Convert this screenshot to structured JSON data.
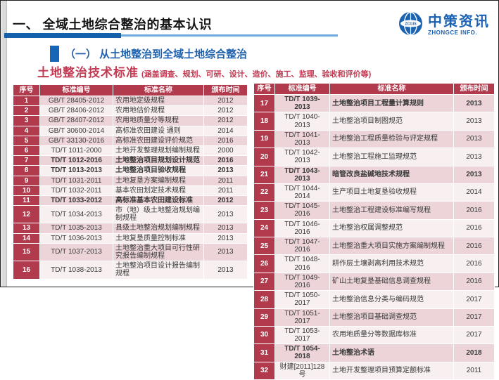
{
  "header": {
    "title": "一、 全域土地综合整治的基本认识",
    "logo": {
      "globe_icon": "globe-zcgis",
      "globe_text": "ZCGIS",
      "zh": "中策资讯",
      "en": "ZHONGCE INFO."
    }
  },
  "subtitle": "（一） 从土地整治到全域土地综合整治",
  "standards_heading": {
    "main": "土地整治技术标准",
    "note": "(涵盖调查、规划、可研、设计、造价、施工、监理、验收和评价等)"
  },
  "colors": {
    "table_header_red": "#b13b4d",
    "row_pink": "#ecd4d8",
    "row_light": "#f8eff0",
    "rule_blue_dark": "#1460ab",
    "rule_blue_light": "#6ea9dc",
    "heading_red": "#c23a52",
    "brand_blue": "#1b62b0"
  },
  "table": {
    "columns": [
      "序号",
      "标准编号",
      "标准名称",
      "颁布时间"
    ],
    "left_rows": [
      {
        "no": 1,
        "code": "GB/T 28405-2012",
        "name": "农用地定级规程",
        "year": "2012",
        "bold": false
      },
      {
        "no": 2,
        "code": "GB/T 28406-2012",
        "name": "农用地估价规程",
        "year": "2012",
        "bold": false
      },
      {
        "no": 3,
        "code": "GB/T 28407-2012",
        "name": "农用地质量分等规程",
        "year": "2012",
        "bold": false
      },
      {
        "no": 4,
        "code": "GB/T 30600-2014",
        "name": "高标准农田建设 通则",
        "year": "2014",
        "bold": false
      },
      {
        "no": 5,
        "code": "GB/T 33130-2016",
        "name": "高标准农田建设评价规范",
        "year": "2016",
        "bold": false
      },
      {
        "no": 6,
        "code": "TD/T 1011-2000",
        "name": "土地开发整理规划编制规程",
        "year": "2000",
        "bold": false
      },
      {
        "no": 7,
        "code": "TD/T 1012-2016",
        "name": "土地整治项目规划设计规范",
        "year": "2016",
        "bold": true
      },
      {
        "no": 8,
        "code": "TD/T 1013-2013",
        "name": "土地整治项目验收规程",
        "year": "2013",
        "bold": true
      },
      {
        "no": 9,
        "code": "TD/T 1031-2011",
        "name": "土地复垦方案编制规程",
        "year": "2011",
        "bold": false
      },
      {
        "no": 10,
        "code": "TD/T 1032-2011",
        "name": "基本农田划定技术规程",
        "year": "2011",
        "bold": false
      },
      {
        "no": 11,
        "code": "TD/T 1033-2012",
        "name": "高标准基本农田建设标准",
        "year": "2012",
        "bold": true
      },
      {
        "no": 12,
        "code": "TD/T 1034-2013",
        "name": "市（地）级土地整治规划编制规程",
        "year": "2013",
        "bold": false
      },
      {
        "no": 13,
        "code": "TD/T 1035-2013",
        "name": "县级土地整治规划编制规程",
        "year": "2013",
        "bold": false
      },
      {
        "no": 14,
        "code": "TD/T 1036-2013",
        "name": "土地复垦质量控制标准",
        "year": "2013",
        "bold": false
      },
      {
        "no": 15,
        "code": "TD/T 1037-2013",
        "name": "土地整治重大项目可行性研究报告编制规程",
        "year": "2013",
        "bold": false
      },
      {
        "no": 16,
        "code": "TD/T 1038-2013",
        "name": "土地整治项目设计报告编制规程",
        "year": "2013",
        "bold": false
      }
    ],
    "right_rows": [
      {
        "no": 17,
        "code": "TD/T 1039-2013",
        "name": "土地整治项目工程量计算规则",
        "year": "2013",
        "bold": true
      },
      {
        "no": 18,
        "code": "TD/T 1040-2013",
        "name": "土地整治项目制图规范",
        "year": "2013",
        "bold": false
      },
      {
        "no": 19,
        "code": "TD/T 1041-2013",
        "name": "土地整治工程质量检验与评定规程",
        "year": "2013",
        "bold": false
      },
      {
        "no": 20,
        "code": "TD/T 1042-2013",
        "name": "土地整治工程施工监理规范",
        "year": "2013",
        "bold": false
      },
      {
        "no": 21,
        "code": "TD/T 1043-2013",
        "name": "暗管改良盐碱地技术规程",
        "year": "2013",
        "bold": true
      },
      {
        "no": 22,
        "code": "TD/T 1044-2014",
        "name": "生产项目土地复垦验收规程",
        "year": "2014",
        "bold": false
      },
      {
        "no": 23,
        "code": "TD/T 1045-2016",
        "name": "土地整治工程建设标准编写规程",
        "year": "2016",
        "bold": false
      },
      {
        "no": 24,
        "code": "TD/T 1046-2016",
        "name": "土地整治权属调整规范",
        "year": "2016",
        "bold": false
      },
      {
        "no": 25,
        "code": "TD/T 1047-2016",
        "name": "土地整治重大项目实施方案编制规程",
        "year": "2016",
        "bold": false
      },
      {
        "no": 26,
        "code": "TD/T 1048-2016",
        "name": "耕作层土壤剥离利用技术规范",
        "year": "2016",
        "bold": false
      },
      {
        "no": 27,
        "code": "TD/T 1049-2016",
        "name": "矿山土地复垦基础信息调查规程",
        "year": "2016",
        "bold": false
      },
      {
        "no": 28,
        "code": "TD/T 1050-2017",
        "name": "土地整治信息分类与编码规范",
        "year": "2017",
        "bold": false
      },
      {
        "no": 29,
        "code": "TD/T 1051-2017",
        "name": "土地整治项目基础调查规范",
        "year": "2017",
        "bold": false
      },
      {
        "no": 30,
        "code": "TD/T 1053-2017",
        "name": "农用地质量分等数据库标准",
        "year": "2017",
        "bold": false
      },
      {
        "no": 31,
        "code": "TD/T 1054-2018",
        "name": "土地整治术语",
        "year": "2018",
        "bold": true
      },
      {
        "no": 32,
        "code": "财建[2011]128号",
        "name": "土地开发整理项目预算定额标准",
        "year": "2011",
        "bold": false
      }
    ]
  }
}
